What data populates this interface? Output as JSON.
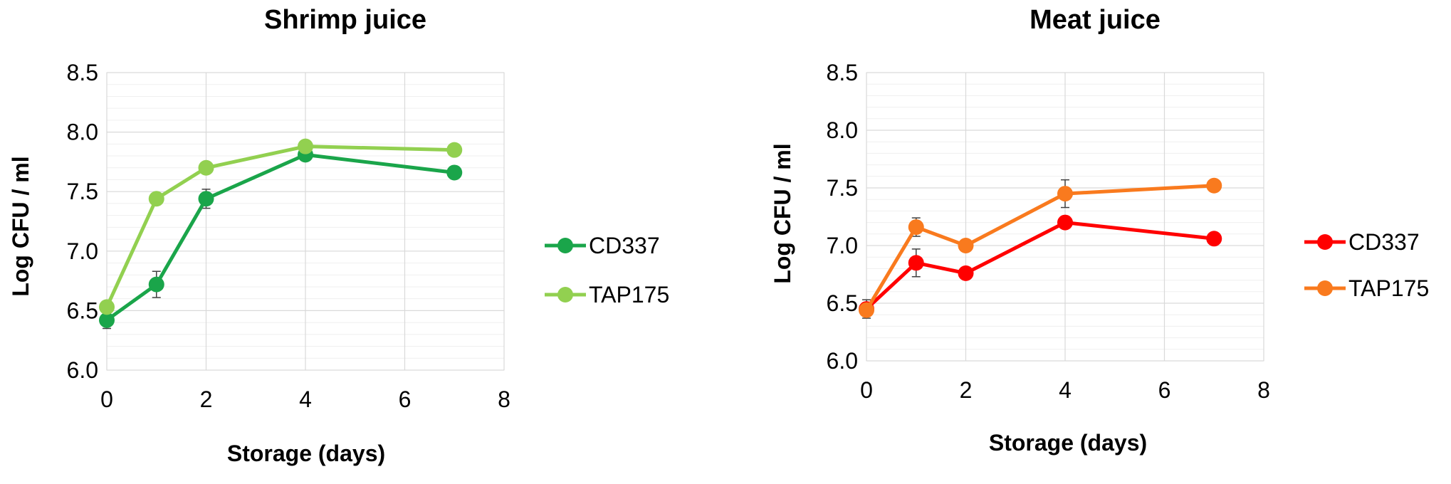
{
  "chart_data": [
    {
      "type": "line",
      "title": "Shrimp juice",
      "xlabel": "Storage (days)",
      "ylabel": "Log CFU / ml",
      "xlim": [
        0,
        8
      ],
      "ylim": [
        6.0,
        8.5
      ],
      "x_ticks": [
        "0",
        "2",
        "4",
        "6",
        "8"
      ],
      "y_ticks": [
        "6.0",
        "6.5",
        "7.0",
        "7.5",
        "8.0",
        "8.5"
      ],
      "grid": true,
      "legend_position": "right",
      "series": [
        {
          "name": "CD337",
          "color": "#1aa54a",
          "x": [
            0,
            1,
            2,
            4,
            7
          ],
          "y": [
            6.42,
            6.72,
            7.44,
            7.81,
            7.66
          ],
          "error": [
            0.07,
            0.11,
            0.08,
            0.04,
            0.03
          ]
        },
        {
          "name": "TAP175",
          "color": "#92d050",
          "x": [
            0,
            1,
            2,
            4,
            7
          ],
          "y": [
            6.53,
            7.44,
            7.7,
            7.88,
            7.85
          ],
          "error": [
            0.03,
            0.03,
            0.03,
            0.03,
            0.03
          ]
        }
      ]
    },
    {
      "type": "line",
      "title": "Meat juice",
      "xlabel": "Storage (days)",
      "ylabel": "Log CFU / ml",
      "xlim": [
        0,
        8
      ],
      "ylim": [
        6.0,
        8.5
      ],
      "x_ticks": [
        "0",
        "2",
        "4",
        "6",
        "8"
      ],
      "y_ticks": [
        "6.0",
        "6.5",
        "7.0",
        "7.5",
        "8.0",
        "8.5"
      ],
      "grid": true,
      "legend_position": "right",
      "series": [
        {
          "name": "CD337",
          "color": "#ff0000",
          "x": [
            0,
            1,
            2,
            4,
            7
          ],
          "y": [
            6.45,
            6.85,
            6.76,
            7.2,
            7.06
          ],
          "error": [
            0.08,
            0.12,
            0.03,
            0.05,
            0.03
          ]
        },
        {
          "name": "TAP175",
          "color": "#f97a1e",
          "x": [
            0,
            1,
            2,
            4,
            7
          ],
          "y": [
            6.44,
            7.16,
            7.0,
            7.45,
            7.52
          ],
          "error": [
            0.05,
            0.08,
            0.03,
            0.12,
            0.03
          ]
        }
      ]
    }
  ]
}
